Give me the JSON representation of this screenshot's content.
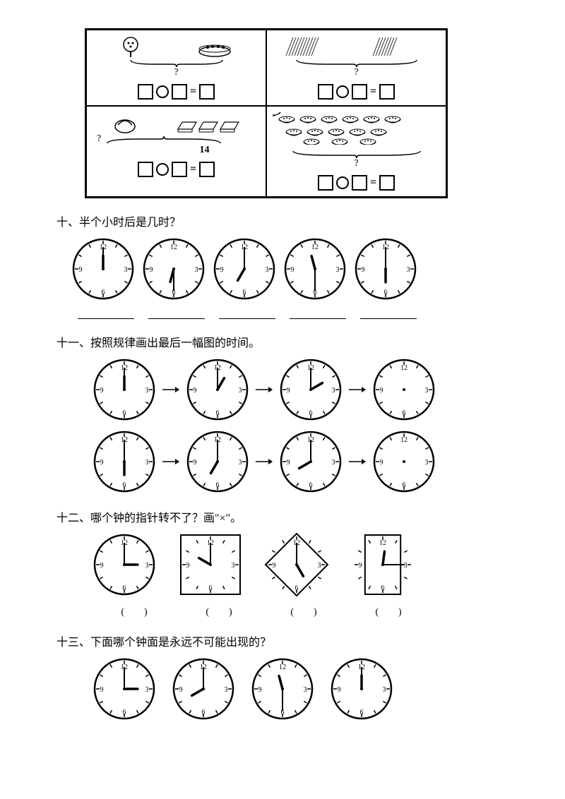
{
  "topgrid": {
    "cell_14_label": "14",
    "qmark": "?"
  },
  "q10": {
    "title": "十、半个小时后是几时？",
    "clocks": [
      {
        "hour": 12,
        "minute": 0
      },
      {
        "hour": 6,
        "minute": 30
      },
      {
        "hour": 7,
        "minute": 0
      },
      {
        "hour": 11,
        "minute": 30
      },
      {
        "hour": 6,
        "minute": 0
      }
    ]
  },
  "q11": {
    "title": "十一、按照规律画出最后一幅图的时间。",
    "row1": [
      {
        "hour": 12,
        "minute": 0
      },
      {
        "hour": 1,
        "minute": 0
      },
      {
        "hour": 2,
        "minute": 0
      },
      {
        "hour": null,
        "minute": null
      }
    ],
    "row2": [
      {
        "hour": 6,
        "minute": 0
      },
      {
        "hour": 7,
        "minute": 0
      },
      {
        "hour": 8,
        "minute": 0
      },
      {
        "hour": null,
        "minute": null
      }
    ]
  },
  "q12": {
    "title": "十二、哪个钟的指针转不了？画\"×\"。",
    "clocks": [
      {
        "shape": "circle",
        "hour": 3,
        "minute": 0
      },
      {
        "shape": "square",
        "hour": 10,
        "minute": 0
      },
      {
        "shape": "diamond",
        "hour": 5,
        "minute": 0
      },
      {
        "shape": "tallrect",
        "hour": 12,
        "minute": 15
      }
    ],
    "paren": "(　　)"
  },
  "q13": {
    "title": "十三、下面哪个钟面是永远不可能出现的？",
    "clocks": [
      {
        "hour": 3,
        "minute": 0
      },
      {
        "hour": 8,
        "minute": 0
      },
      {
        "hour": 11,
        "minute": 30
      },
      {
        "hour": 12,
        "minute": 0
      }
    ]
  },
  "clock_style": {
    "radius": 42,
    "stroke": "#000000",
    "fill": "#ffffff",
    "numbers": [
      "12",
      "3",
      "6",
      "9"
    ],
    "num_fontsize": 10
  }
}
